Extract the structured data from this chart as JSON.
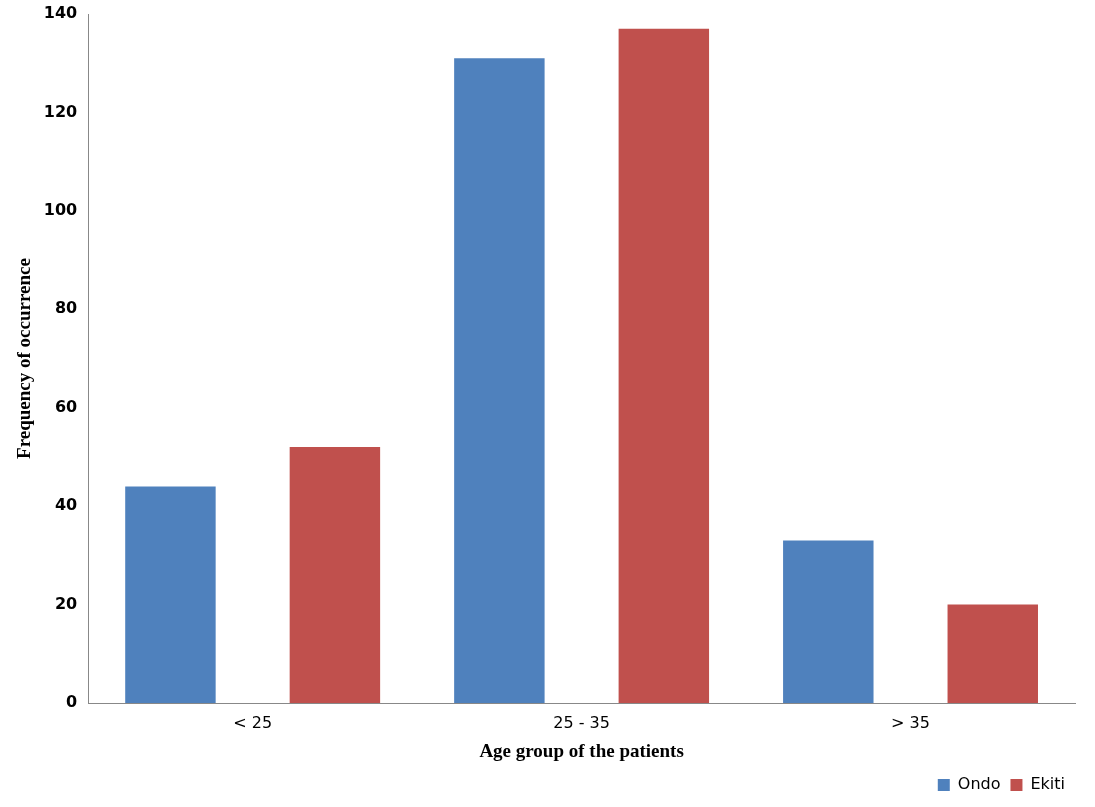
{
  "chart_data": {
    "type": "bar",
    "xlabel": "Age group of the patients",
    "ylabel": "Frequency of occurrence",
    "categories": [
      "< 25",
      "25 - 35",
      "> 35"
    ],
    "series": [
      {
        "name": "Ondo",
        "color": "#4f81bd",
        "values": [
          44,
          131,
          33
        ]
      },
      {
        "name": "Ekiti",
        "color": "#c0504d",
        "values": [
          52,
          137,
          20
        ]
      }
    ],
    "ylim": [
      0,
      140
    ],
    "yticks": [
      0,
      20,
      40,
      60,
      80,
      100,
      120,
      140
    ],
    "grid": false,
    "legend": "bottom right"
  }
}
